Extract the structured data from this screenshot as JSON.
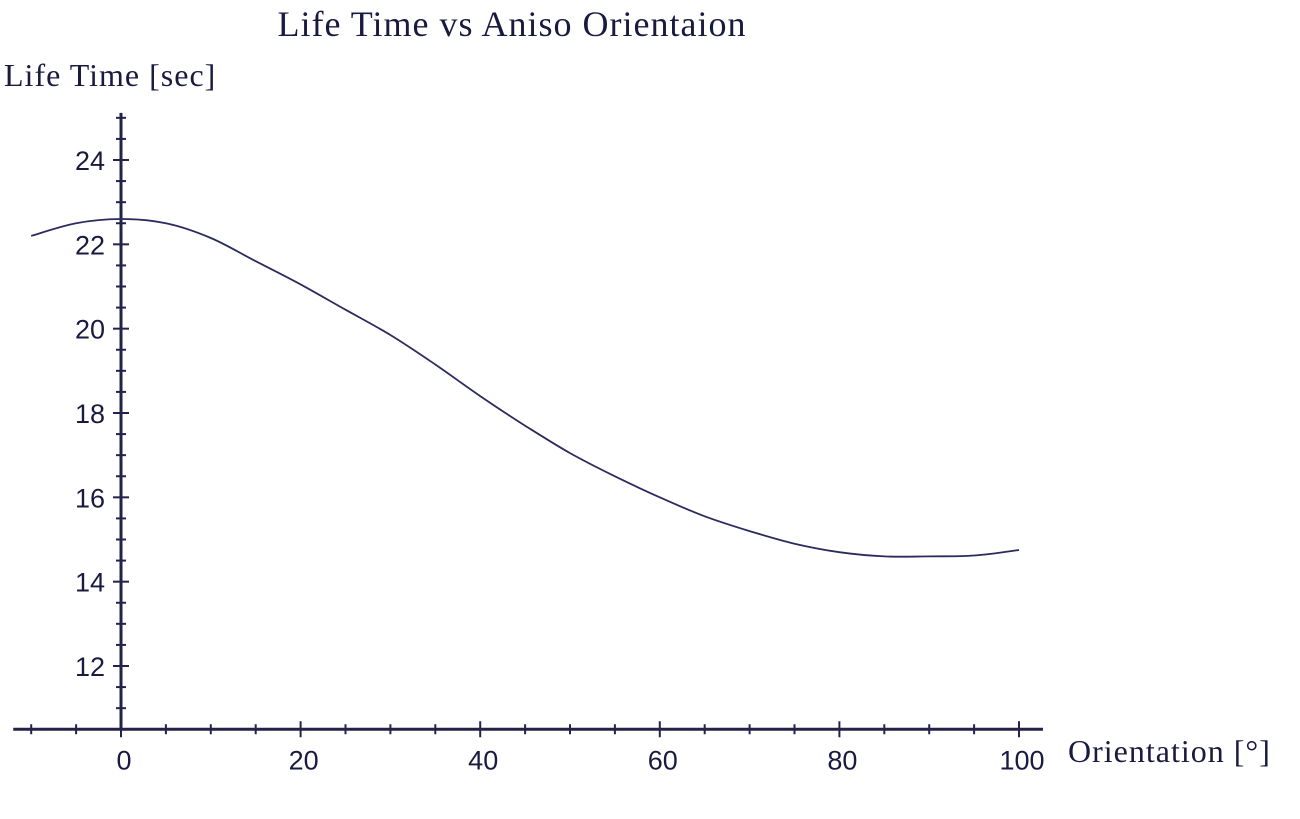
{
  "chart_data": {
    "type": "line",
    "title": "Life Time vs  Aniso  Orientaion",
    "xlabel": "Orientation [°]",
    "ylabel": "Life Time [sec]",
    "xlim": [
      -12,
      102
    ],
    "ylim": [
      10.5,
      25
    ],
    "x_ticks": [
      0,
      20,
      40,
      60,
      80,
      100
    ],
    "y_ticks": [
      12,
      14,
      16,
      18,
      20,
      22,
      24
    ],
    "x_minor_step": 5,
    "y_minor_step": 0.5,
    "grid": false,
    "legend": "none",
    "series": [
      {
        "color": "#2b2b5e",
        "x": [
          -10,
          -5,
          0,
          5,
          10,
          15,
          20,
          25,
          30,
          35,
          40,
          45,
          50,
          55,
          60,
          65,
          70,
          75,
          80,
          85,
          90,
          95,
          100
        ],
        "y": [
          22.2,
          22.5,
          22.6,
          22.5,
          22.15,
          21.6,
          21.05,
          20.45,
          19.85,
          19.15,
          18.4,
          17.7,
          17.05,
          16.5,
          16.0,
          15.55,
          15.2,
          14.9,
          14.7,
          14.6,
          14.6,
          14.62,
          14.75
        ]
      }
    ]
  }
}
